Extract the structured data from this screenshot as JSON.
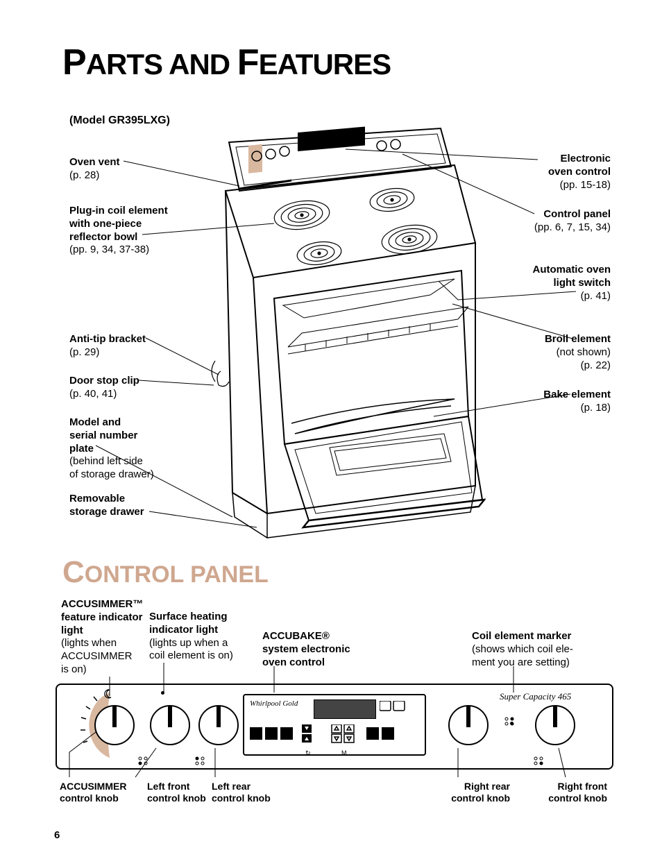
{
  "title_main_html": "<span class='big'>P</span>ARTS AND <span class='big'>F</span>EATURES",
  "model": "(Model GR395LXG)",
  "left_labels": {
    "oven_vent_b": "Oven vent",
    "oven_vent_p": "(p. 28)",
    "coil_b1": "Plug-in coil element",
    "coil_b2": "with one-piece",
    "coil_b3": "reflector bowl",
    "coil_p": "(pp. 9, 34, 37-38)",
    "anti_tip_b": "Anti-tip bracket",
    "anti_tip_p": "(p. 29)",
    "door_stop_b": "Door stop clip",
    "door_stop_p": "(p. 40, 41)",
    "model_plate_b1": "Model and",
    "model_plate_b2": "serial number",
    "model_plate_b3": "plate",
    "model_plate_p1": "(behind left side",
    "model_plate_p2": "of storage drawer)",
    "drawer_b1": "Removable",
    "drawer_b2": "storage drawer"
  },
  "right_labels": {
    "eoc_b1": "Electronic",
    "eoc_b2": "oven control",
    "eoc_p": "(pp. 15-18)",
    "cp_b": "Control panel",
    "cp_p": "(pp. 6, 7, 15, 34)",
    "light_b1": "Automatic oven",
    "light_b2": "light switch",
    "light_p": "(p. 41)",
    "broil_b": "Broil element",
    "broil_p1": "(not shown)",
    "broil_p2": "(p. 22)",
    "bake_b": "Bake element",
    "bake_p": "(p. 18)"
  },
  "subtitle_html": "<span class='big'>C</span>ONTROL PANEL",
  "panel_labels": {
    "acc_ind_b1": "ACCUSIMMER™",
    "acc_ind_b2": "feature indicator",
    "acc_ind_b3": "light",
    "acc_ind_p1": "(lights when",
    "acc_ind_p2": "ACCUSIMMER",
    "acc_ind_p3": "is on)",
    "surf_b1": "Surface heating",
    "surf_b2": "indicator light",
    "surf_p1": "(lights up when a",
    "surf_p2": "coil element is on)",
    "accubake_b1": "ACCUBAKE®",
    "accubake_b2": "system electronic",
    "accubake_b3": "oven control",
    "marker_b": "Coil element marker",
    "marker_p1": "(shows which coil ele-",
    "marker_p2": "ment you are setting)",
    "brand_script": "Whirlpool Gold",
    "capacity": "Super Capacity 465"
  },
  "lower_labels": {
    "acc_knob_1": "ACCUSIMMER",
    "acc_knob_2": "control knob",
    "lf_1": "Left front",
    "lf_2": "control knob",
    "lr_1": "Left rear",
    "lr_2": "control knob",
    "rr_1": "Right rear",
    "rr_2": "control knob",
    "rf_1": "Right front",
    "rf_2": "control knob"
  },
  "page_number": "6",
  "colors": {
    "subtitle": "#cfa78f",
    "tan": "#d9b8a0"
  }
}
